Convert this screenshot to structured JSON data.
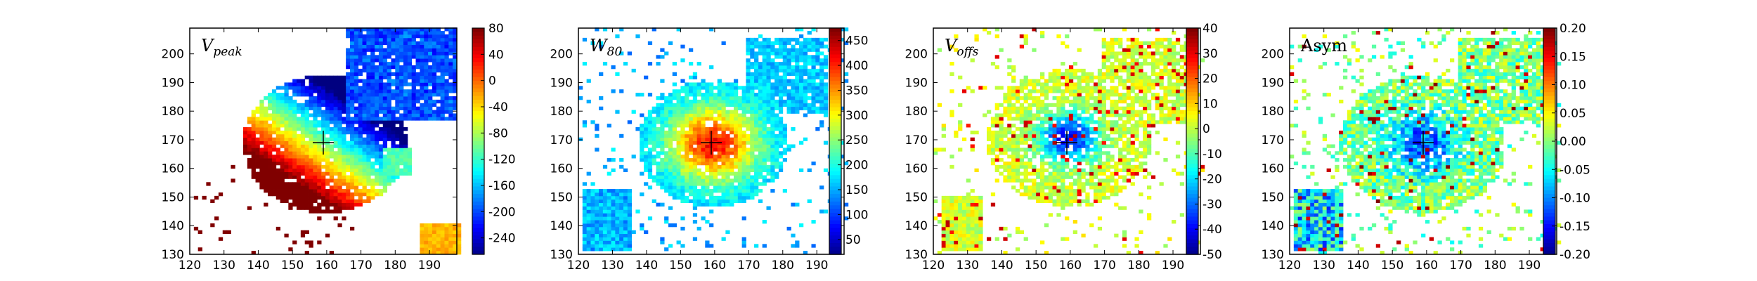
{
  "chart_data": [
    {
      "type": "heatmap",
      "title": "V",
      "title_sub": "peak",
      "x_ticks": [
        "120",
        "130",
        "140",
        "150",
        "160",
        "170",
        "180",
        "190"
      ],
      "y_ticks": [
        "130",
        "140",
        "150",
        "160",
        "170",
        "180",
        "190",
        "200"
      ],
      "xlim": [
        120,
        198
      ],
      "ylim": [
        130,
        209
      ],
      "colorbar_ticks": [
        "80",
        "40",
        "0",
        "-40",
        "-80",
        "-120",
        "-160",
        "-200",
        "-240"
      ],
      "colorbar_range": [
        -265,
        80
      ],
      "center_marker": [
        159,
        169
      ],
      "colormap": "jet"
    },
    {
      "type": "heatmap",
      "title": "W",
      "title_sub": "80",
      "x_ticks": [
        "120",
        "130",
        "140",
        "150",
        "160",
        "170",
        "180",
        "190"
      ],
      "y_ticks": [
        "130",
        "140",
        "150",
        "160",
        "170",
        "180",
        "190",
        "200"
      ],
      "xlim": [
        120,
        198
      ],
      "ylim": [
        130,
        209
      ],
      "colorbar_ticks": [
        "450",
        "400",
        "350",
        "300",
        "250",
        "200",
        "150",
        "100",
        "50"
      ],
      "colorbar_range": [
        20,
        475
      ],
      "center_marker": [
        159,
        169
      ],
      "colormap": "jet"
    },
    {
      "type": "heatmap",
      "title": "V",
      "title_sub": "offs",
      "x_ticks": [
        "120",
        "130",
        "140",
        "150",
        "160",
        "170",
        "180",
        "190"
      ],
      "y_ticks": [
        "130",
        "140",
        "150",
        "160",
        "170",
        "180",
        "190",
        "200"
      ],
      "xlim": [
        120,
        198
      ],
      "ylim": [
        130,
        209
      ],
      "colorbar_ticks": [
        "40",
        "30",
        "20",
        "10",
        "0",
        "-10",
        "-20",
        "-30",
        "-40",
        "-50"
      ],
      "colorbar_range": [
        -50,
        40
      ],
      "center_marker": [
        159,
        169
      ],
      "colormap": "jet"
    },
    {
      "type": "heatmap",
      "title": "Asym",
      "title_sub": "",
      "x_ticks": [
        "120",
        "130",
        "140",
        "150",
        "160",
        "170",
        "180",
        "190"
      ],
      "y_ticks": [
        "130",
        "140",
        "150",
        "160",
        "170",
        "180",
        "190",
        "200"
      ],
      "xlim": [
        120,
        198
      ],
      "ylim": [
        130,
        209
      ],
      "colorbar_ticks": [
        "0.20",
        "0.15",
        "0.10",
        "0.05",
        "0.00",
        "-0.05",
        "-0.10",
        "-0.15",
        "-0.20"
      ],
      "colorbar_range": [
        -0.2,
        0.2
      ],
      "center_marker": [
        159,
        169
      ],
      "colormap": "jet"
    }
  ]
}
